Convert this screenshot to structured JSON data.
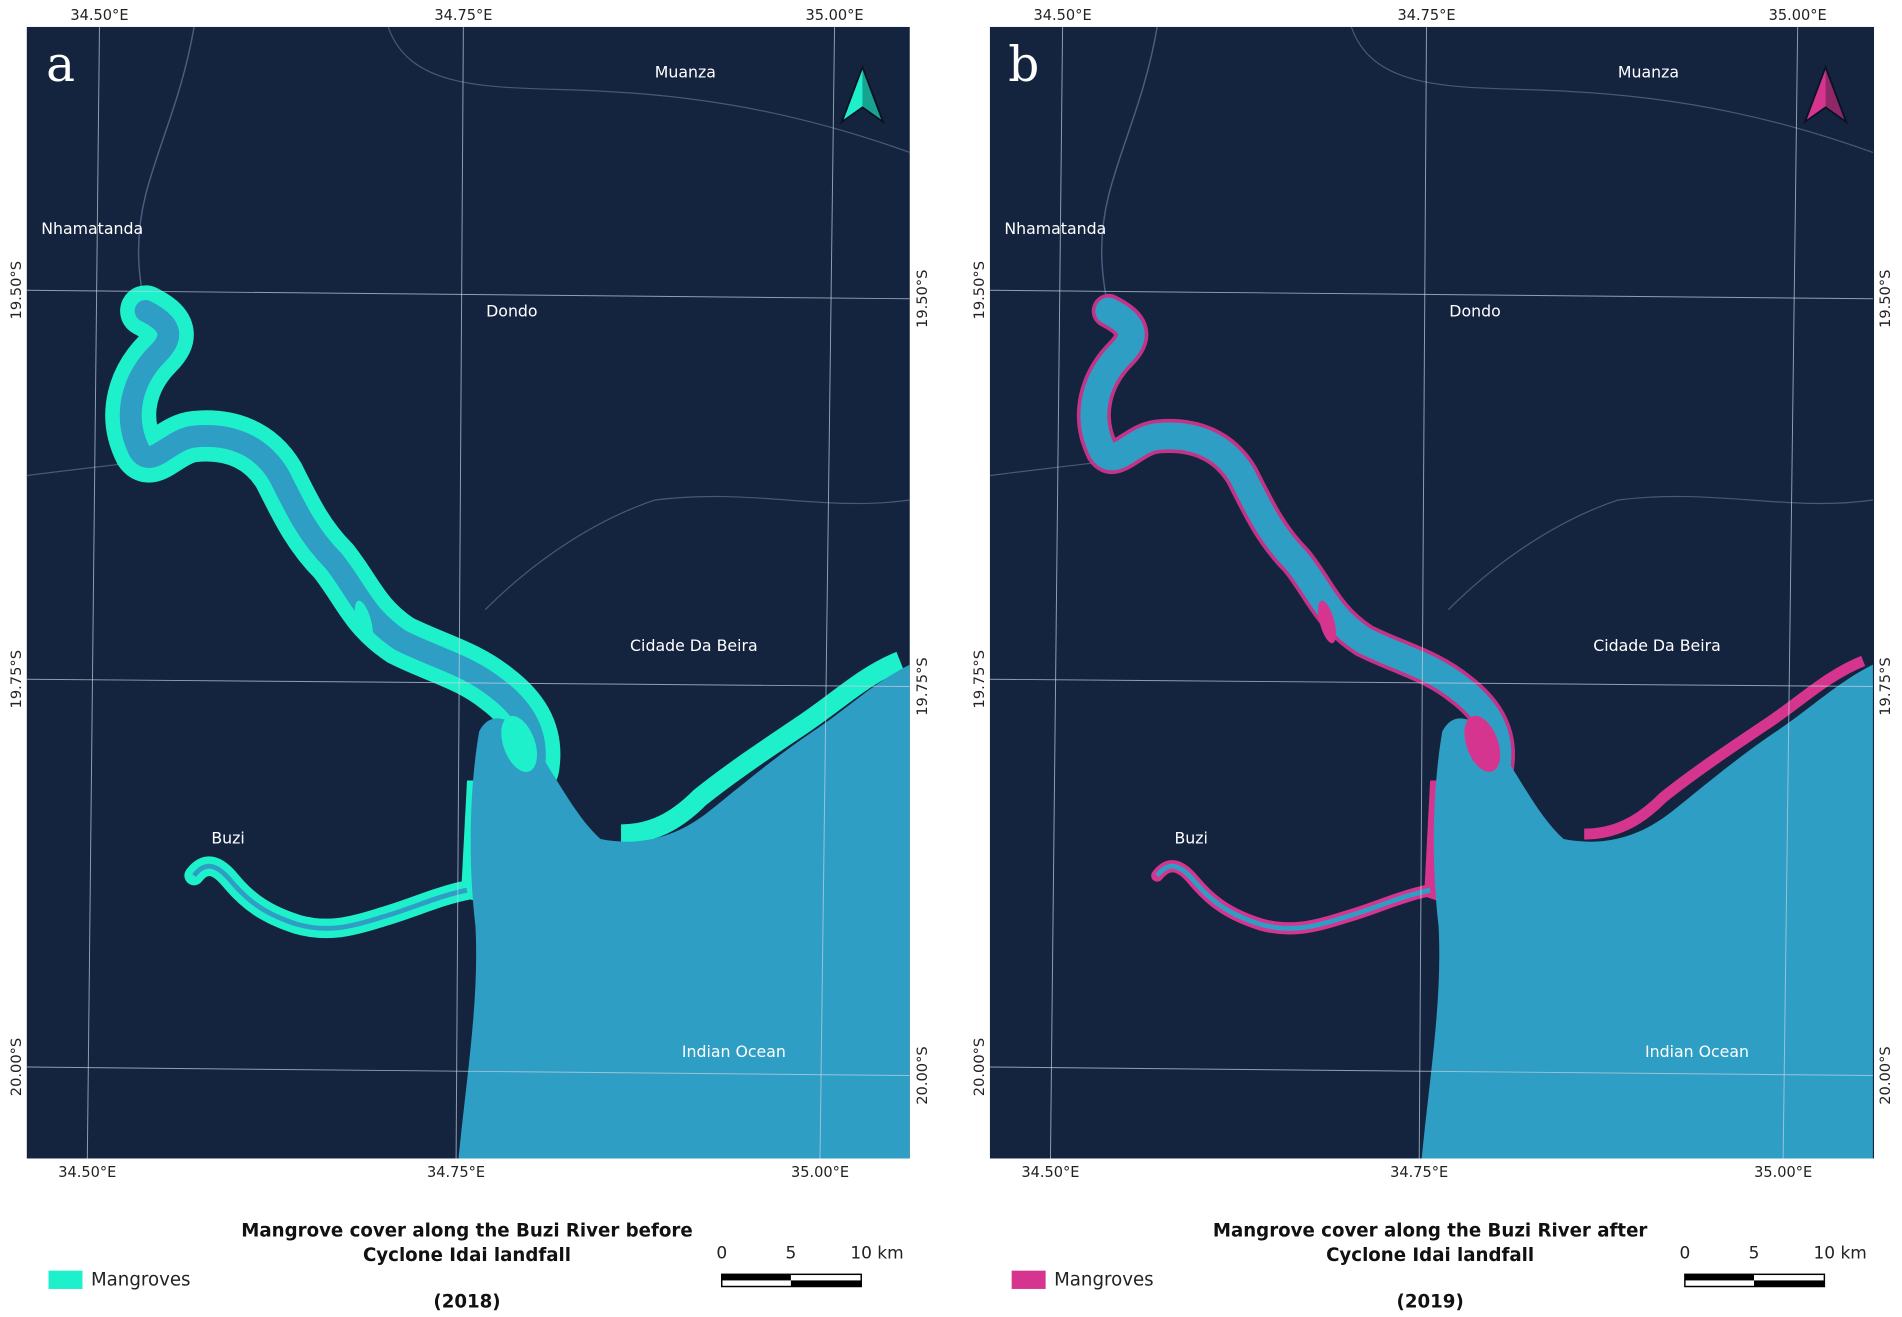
{
  "panels": [
    {
      "label": "a",
      "mangrove_color": "#1ff0cc",
      "places": [
        "Muanza",
        "Nhamatanda",
        "Dondo",
        "Cidade Da Beira",
        "Buzi",
        "Indian Ocean"
      ],
      "top_lon": [
        "34.50°E",
        "34.75°E",
        "35.00°E"
      ],
      "bottom_lon": [
        "34.50°E",
        "34.75°E",
        "35.00°E"
      ],
      "left_lat": [
        "19.50°S",
        "19.75°S",
        "20.00°S"
      ],
      "right_lat": [
        "19.50°S",
        "19.75°S",
        "20.00°S"
      ],
      "title": [
        "Mangrove cover along the Buzi River before",
        "Cyclone Idai landfall"
      ],
      "year": "(2018)",
      "legend": "Mangroves",
      "scale": [
        "0",
        "5",
        "10 km"
      ]
    },
    {
      "label": "b",
      "mangrove_color": "#d6358f",
      "places": [
        "Muanza",
        "Nhamatanda",
        "Dondo",
        "Cidade Da Beira",
        "Buzi",
        "Indian Ocean"
      ],
      "top_lon": [
        "34.50°E",
        "34.75°E",
        "35.00°E"
      ],
      "bottom_lon": [
        "34.50°E",
        "34.75°E",
        "35.00°E"
      ],
      "left_lat": [
        "19.50°S",
        "19.75°S",
        "20.00°S"
      ],
      "right_lat": [
        "19.50°S",
        "19.75°S",
        "20.00°S"
      ],
      "title": [
        "Mangrove cover along the Buzi River after",
        "Cyclone Idai landfall"
      ],
      "year": "(2019)",
      "legend": "Mangroves",
      "scale": [
        "0",
        "5",
        "10 km"
      ]
    }
  ]
}
